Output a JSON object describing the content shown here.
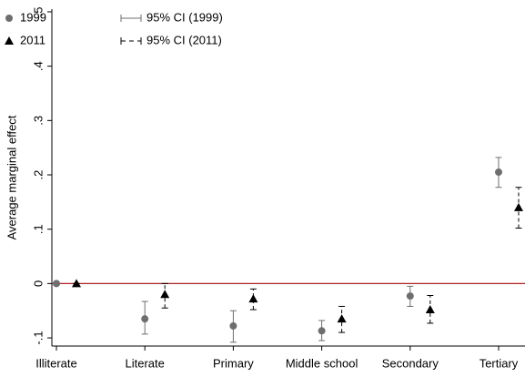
{
  "chart_data": {
    "type": "dot",
    "y_label": "Average marginal effect",
    "categories": [
      "Illiterate",
      "Literate",
      "Primary",
      "Middle school",
      "Secondary",
      "Tertiary"
    ],
    "series": [
      {
        "name": "1999",
        "ci_name": "95% CI (1999)",
        "color": "#6e6e6e",
        "marker": "circle",
        "dashed": false,
        "values": [
          0,
          -0.065,
          -0.078,
          -0.087,
          -0.023,
          0.205
        ],
        "lower": [
          0,
          -0.093,
          -0.108,
          -0.105,
          -0.042,
          0.177
        ],
        "upper": [
          0,
          -0.033,
          -0.05,
          -0.068,
          -0.005,
          0.232
        ]
      },
      {
        "name": "2011",
        "ci_name": "95% CI (2011)",
        "color": "#000000",
        "marker": "triangle",
        "dashed": true,
        "values": [
          0,
          -0.02,
          -0.028,
          -0.065,
          -0.048,
          0.14
        ],
        "lower": [
          0,
          -0.045,
          -0.048,
          -0.09,
          -0.073,
          0.102
        ],
        "upper": [
          0,
          0,
          -0.01,
          -0.042,
          -0.022,
          0.177
        ]
      }
    ],
    "ylim": [
      -0.115,
      0.505
    ],
    "yticks": [
      {
        "value": -0.1,
        "label": "-.1"
      },
      0,
      {
        "value": 0.1,
        "label": ".1"
      },
      {
        "value": 0.2,
        "label": ".2"
      },
      {
        "value": 0.3,
        "label": ".3"
      },
      {
        "value": 0.4,
        "label": ".4"
      },
      {
        "value": 0.5,
        "label": ".5"
      }
    ],
    "reference_line": 0,
    "reference_color": "#b22222",
    "grid": false
  }
}
